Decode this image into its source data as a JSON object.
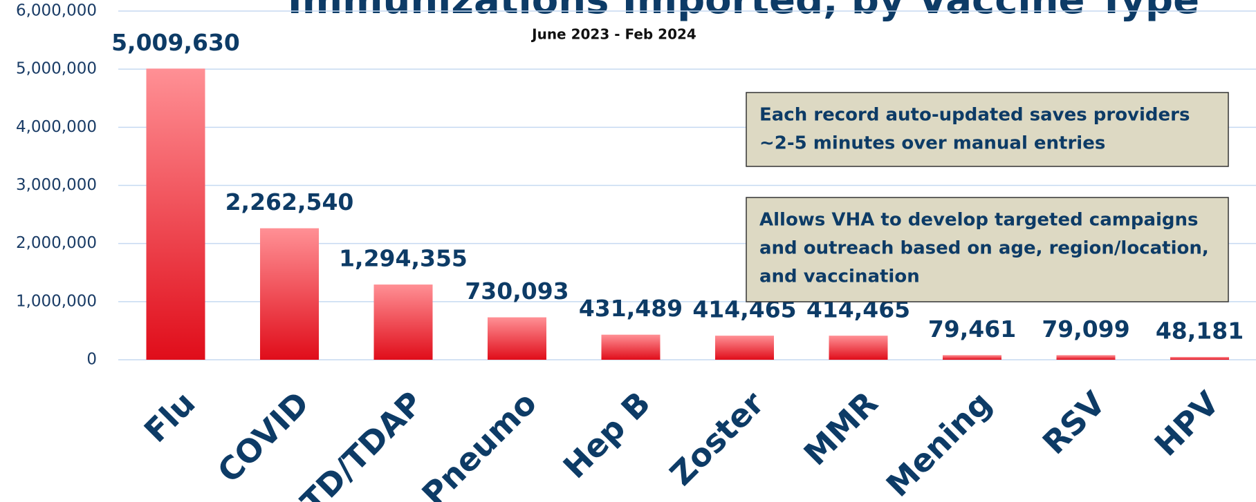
{
  "chart_data": {
    "type": "bar",
    "title": "Immunizations Imported, by Vaccine Type",
    "subtitle": "June 2023 - Feb 2024",
    "categories": [
      "Flu",
      "COVID",
      "TD/TDAP",
      "Pneumo",
      "Hep B",
      "Zoster",
      "MMR",
      "Mening",
      "RSV",
      "HPV"
    ],
    "values": [
      5009630,
      2262540,
      1294355,
      730093,
      431489,
      414465,
      414465,
      79461,
      79099,
      48181
    ],
    "value_labels": [
      "5,009,630",
      "2,262,540",
      "1,294,355",
      "730,093",
      "431,489",
      "414,465",
      "414,465",
      "79,461",
      "79,099",
      "48,181"
    ],
    "color": [
      "#ff9095",
      "#e00d1a"
    ],
    "ylim": [
      0,
      6000000
    ],
    "yticks": [
      0,
      {
        "value": 1000000,
        "label": "1,000,000"
      },
      {
        "value": 2000000,
        "label": "2,000,000"
      },
      {
        "value": 3000000,
        "label": "3,000,000"
      },
      {
        "value": 4000000,
        "label": "4,000,000"
      },
      {
        "value": 5000000,
        "label": "5,000,000"
      },
      {
        "value": 6000000,
        "label": "6,000,000"
      }
    ],
    "grid": true,
    "annotations": [
      [
        "Each record auto-updated saves providers",
        "~2-5 minutes over manual entries"
      ],
      [
        "Allows VHA to develop targeted campaigns",
        "and outreach based on age, region/location,",
        "and vaccination"
      ]
    ]
  }
}
